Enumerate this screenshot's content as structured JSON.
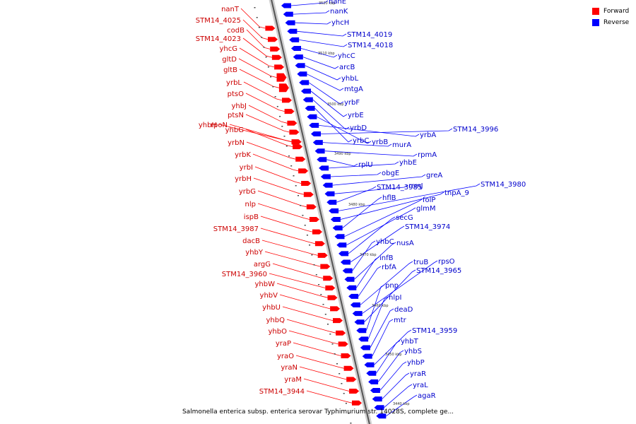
{
  "legend": {
    "forward_label": "Forward",
    "reverse_label": "Reverse",
    "forward_color": "#ff0000",
    "reverse_color": "#0000ff"
  },
  "caption": "Salmonella enterica subsp. enterica serovar Typhimurium str. 14028S, complete ge...",
  "ruler": {
    "unit_suffix": " kbp",
    "ticks": [
      {
        "label": "3520 kbp"
      },
      {
        "label": "3510 kbp"
      },
      {
        "label": "3500 kbp"
      },
      {
        "label": "3490 kbp"
      },
      {
        "label": "3480 kbp"
      },
      {
        "label": "3470 kbp"
      },
      {
        "label": "3460 kbp"
      },
      {
        "label": "3450 kbp"
      },
      {
        "label": "3440 kbp"
      }
    ]
  },
  "forward_genes": [
    "nanT",
    "STM14_4025",
    "codB",
    "STM14_4023",
    "yhcG",
    "gltD",
    "gltB",
    "yrbL",
    "ptsO",
    "yhbJ",
    "ptsN",
    "yhbH",
    "rpoN",
    "yhbG",
    "yrbN",
    "yrbK",
    "yrbI",
    "yrbH",
    "yrbG",
    "nlp",
    "ispB",
    "STM14_3987",
    "dacB",
    "yhbY",
    "argG",
    "STM14_3960",
    "yhbW",
    "yhbV",
    "yhbU",
    "yhbQ",
    "yhbO",
    "yraP",
    "yraO",
    "yraN",
    "yraM",
    "STM14_3944"
  ],
  "reverse_genes": [
    "nanE",
    "nanK",
    "yhcH",
    "STM14_4019",
    "STM14_4018",
    "yhcC",
    "arcB",
    "yhbL",
    "mtgA",
    "yrbF",
    "yrbE",
    "yrbD",
    "yrbC",
    "yrbB",
    "yrbA",
    "STM14_3996",
    "murA",
    "rpmA",
    "rplU",
    "yhbE",
    "obgE",
    "greA",
    "rrmJ",
    "STM14_3985",
    "STM14_3980",
    "tnpA_9",
    "hflB",
    "folP",
    "glmM",
    "secG",
    "STM14_3974",
    "yhbC",
    "nusA",
    "infB",
    "rbfA",
    "truB",
    "rpsO",
    "STM14_3965",
    "pnp",
    "nlpI",
    "deaD",
    "mtr",
    "STM14_3959",
    "yhbT",
    "yhbS",
    "yhbP",
    "yraR",
    "yraL",
    "agaR"
  ]
}
